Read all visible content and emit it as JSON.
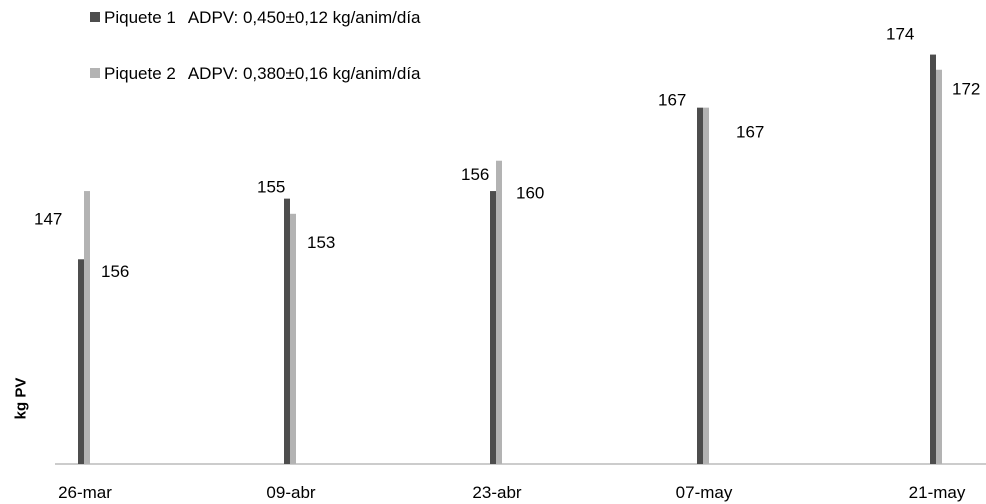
{
  "legend": [
    {
      "name": "Piquete 1",
      "note": "ADPV: 0,450±0,12 kg/anim/día"
    },
    {
      "name": "Piquete 2",
      "note": "ADPV: 0,380±0,16 kg/anim/día"
    }
  ],
  "colors": {
    "series1": "#4d4d4d",
    "series2": "#b3b3b3",
    "axis": "#999999"
  },
  "chart_data": {
    "type": "bar",
    "categories": [
      "26-mar",
      "09-abr",
      "23-abr",
      "07-may",
      "21-may"
    ],
    "series": [
      {
        "name": "Piquete 1",
        "values": [
          147,
          155,
          156,
          167,
          174
        ],
        "labels": [
          "147",
          "155",
          "156",
          "167",
          "174"
        ]
      },
      {
        "name": "Piquete 2",
        "values": [
          156,
          153,
          160,
          167,
          172
        ],
        "labels": [
          "156",
          "153",
          "160",
          "167",
          "172"
        ]
      }
    ],
    "title": "",
    "xlabel": "",
    "ylabel": "kg PV",
    "ylim": [
      120,
      175
    ],
    "grid": false,
    "legend_position": "top-left"
  }
}
